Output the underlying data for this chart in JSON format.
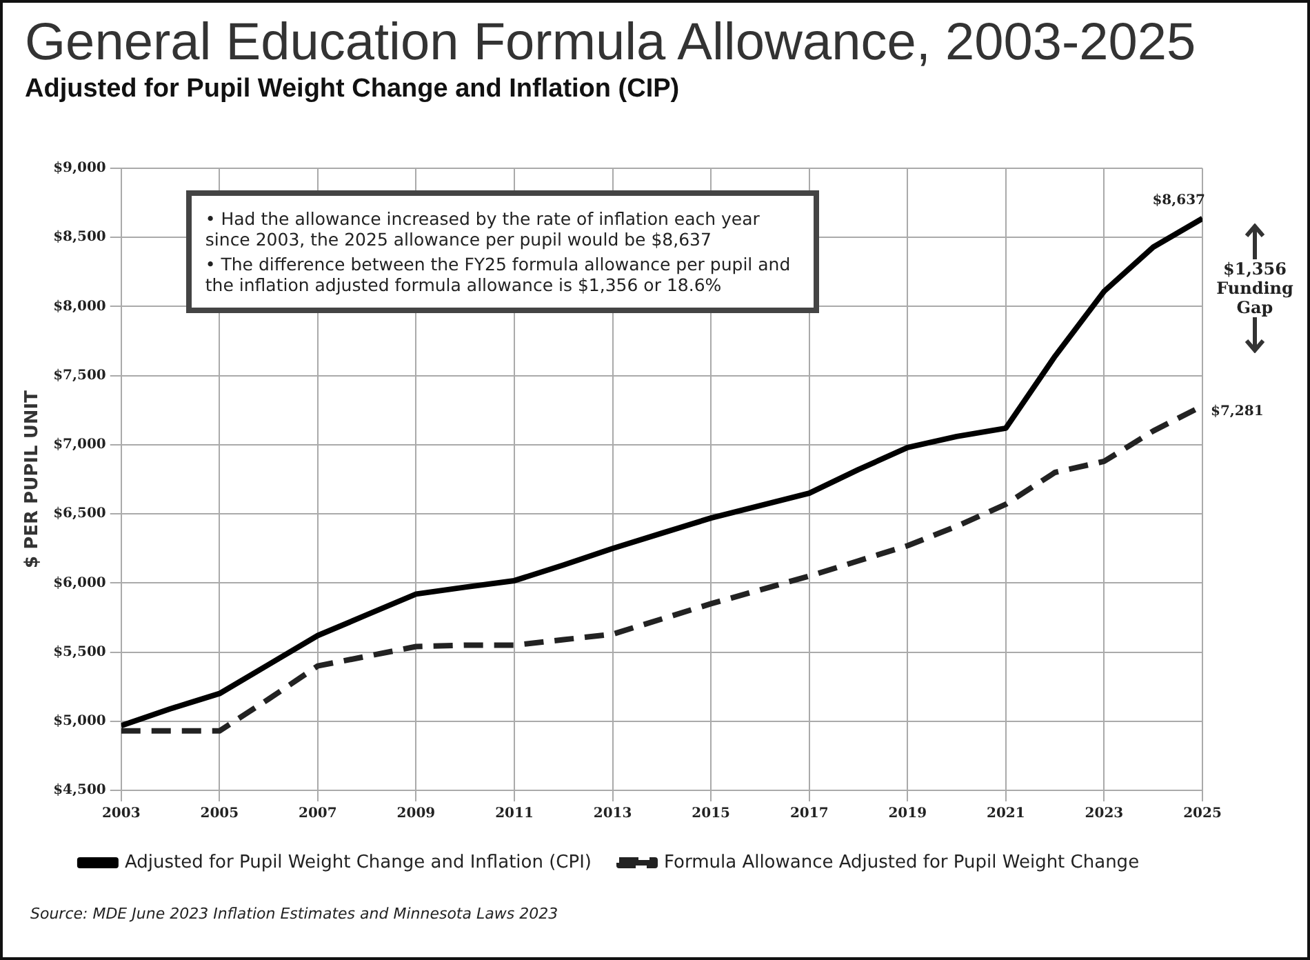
{
  "chart_data": {
    "type": "line",
    "title": "General Education Formula Allowance, 2003-2025",
    "subtitle": "Adjusted for Pupil Weight Change and Inflation (CIP)",
    "ylabel": "$ PER PUPIL UNIT",
    "x": [
      2003,
      2004,
      2005,
      2006,
      2007,
      2008,
      2009,
      2010,
      2011,
      2012,
      2013,
      2014,
      2015,
      2016,
      2017,
      2018,
      2019,
      2020,
      2021,
      2022,
      2023,
      2024,
      2025
    ],
    "series": [
      {
        "name": "Adjusted for Pupil Weight Change and Inflation (CPI)",
        "color": "#000000",
        "line_style": "solid",
        "values": [
          4968,
          5090,
          5200,
          5410,
          5620,
          5770,
          5920,
          5970,
          6017,
          6130,
          6250,
          6360,
          6470,
          6560,
          6650,
          6820,
          6980,
          7060,
          7120,
          7640,
          8110,
          8430,
          8637
        ]
      },
      {
        "name": "Formula Allowance Adjusted for Pupil Weight Change",
        "color": "#222222",
        "line_style": "dashed",
        "values": [
          4930,
          4930,
          4930,
          5160,
          5400,
          5470,
          5540,
          5550,
          5550,
          5590,
          5630,
          5740,
          5850,
          5950,
          6050,
          6160,
          6270,
          6410,
          6570,
          6800,
          6880,
          7100,
          7281
        ]
      }
    ],
    "xlim": [
      2003,
      2025
    ],
    "xticks": [
      2003,
      2005,
      2007,
      2009,
      2011,
      2013,
      2015,
      2017,
      2019,
      2021,
      2023,
      2025
    ],
    "ylim": [
      4500,
      9000
    ],
    "yticks": [
      {
        "value": 4500,
        "label": "$4,500"
      },
      {
        "value": 5000,
        "label": "$5,000"
      },
      {
        "value": 5500,
        "label": "$5,500"
      },
      {
        "value": 6000,
        "label": "$6,000"
      },
      {
        "value": 6500,
        "label": "$6,500"
      },
      {
        "value": 7000,
        "label": "$7,000"
      },
      {
        "value": 7500,
        "label": "$7,500"
      },
      {
        "value": 8000,
        "label": "$8,000"
      },
      {
        "value": 8500,
        "label": "$8,500"
      },
      {
        "value": 9000,
        "label": "$9,000"
      }
    ],
    "grid": true,
    "legend": "bottom",
    "marker": "none",
    "annotations": [
      "• Had the allowance increased by the rate of inflation each year since 2003, the 2025 allowance per pupil would be $8,637",
      "• The difference between the FY25 formula allowance per pupil and the inflation adjusted formula allowance is $1,356 or 18.6%",
      {
        "text": "$8,637",
        "x": 2025,
        "y": 8637
      },
      {
        "text": "$7,281",
        "x": 2025,
        "y": 7281
      },
      "$1,356 Funding Gap",
      "Source: MDE June 2023 Inflation Estimates and Minnesota Laws 2023"
    ]
  }
}
